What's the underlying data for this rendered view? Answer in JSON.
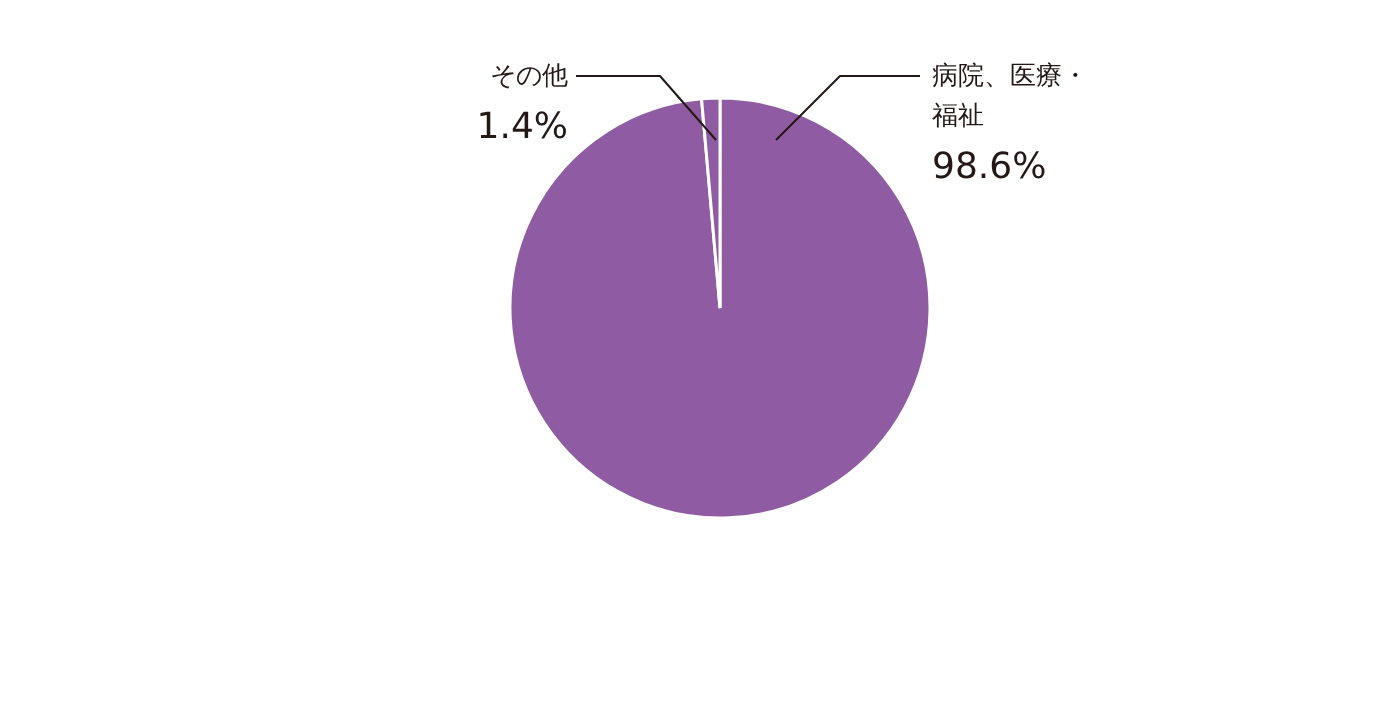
{
  "chart_data": {
    "type": "pie",
    "categories": [
      "病院、医療・福祉",
      "その他"
    ],
    "values": [
      98.6,
      1.4
    ],
    "colors": [
      "#8f5ca3",
      "#8f5ca3"
    ],
    "value_labels": [
      "98.6%",
      "1.4%"
    ]
  }
}
